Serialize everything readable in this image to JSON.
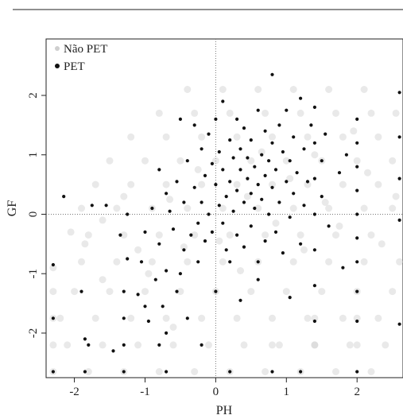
{
  "chart_data": {
    "type": "scatter",
    "xlabel": "PH",
    "ylabel": "GF",
    "xlim": [
      -2.4,
      2.65
    ],
    "ylim": [
      -2.75,
      2.95
    ],
    "x_ticks": [
      -2,
      -1,
      0,
      1,
      2
    ],
    "y_ticks": [
      -2,
      -1,
      0,
      1,
      2
    ],
    "x_tick_labels": [
      "-2",
      "-1",
      "0",
      "1",
      "2"
    ],
    "y_tick_labels": [
      "-2",
      "-1",
      "0",
      "1",
      "2"
    ],
    "reference_lines": {
      "x": 0,
      "y": 0,
      "style": "dotted"
    },
    "legend": {
      "position": "top-left"
    },
    "series": [
      {
        "name": "Não PET",
        "color": "#cfcfcf",
        "points": [
          [
            -2.3,
            -2.65
          ],
          [
            -1.8,
            -2.65
          ],
          [
            -1.3,
            -2.65
          ],
          [
            -0.8,
            -2.65
          ],
          [
            -0.3,
            -2.65
          ],
          [
            0.2,
            -2.65
          ],
          [
            0.7,
            -2.65
          ],
          [
            1.2,
            -2.65
          ],
          [
            1.7,
            -2.65
          ],
          [
            2.2,
            -2.65
          ],
          [
            -2.1,
            -2.2
          ],
          [
            -1.6,
            -2.2
          ],
          [
            -1.1,
            -2.2
          ],
          [
            -0.6,
            -2.2
          ],
          [
            -0.1,
            -2.2
          ],
          [
            0.4,
            -2.2
          ],
          [
            0.9,
            -2.2
          ],
          [
            1.4,
            -2.2
          ],
          [
            1.9,
            -2.2
          ],
          [
            2.4,
            -2.2
          ],
          [
            -2.2,
            -1.75
          ],
          [
            -1.7,
            -1.75
          ],
          [
            -1.2,
            -1.75
          ],
          [
            -0.7,
            -1.75
          ],
          [
            -0.2,
            -1.75
          ],
          [
            0.3,
            -1.75
          ],
          [
            0.8,
            -1.75
          ],
          [
            1.3,
            -1.75
          ],
          [
            1.8,
            -1.75
          ],
          [
            2.3,
            -1.75
          ],
          [
            -2.0,
            -1.3
          ],
          [
            -1.5,
            -1.3
          ],
          [
            -1.0,
            -1.3
          ],
          [
            -0.5,
            -1.3
          ],
          [
            0.0,
            -1.3
          ],
          [
            0.5,
            -1.3
          ],
          [
            1.0,
            -1.3
          ],
          [
            1.5,
            -1.3
          ],
          [
            2.0,
            -1.3
          ],
          [
            2.5,
            -1.3
          ],
          [
            -1.9,
            -0.8
          ],
          [
            -1.4,
            -0.8
          ],
          [
            -0.9,
            -0.8
          ],
          [
            -0.4,
            -0.8
          ],
          [
            0.1,
            -0.8
          ],
          [
            0.6,
            -0.8
          ],
          [
            1.1,
            -0.8
          ],
          [
            1.6,
            -0.8
          ],
          [
            2.1,
            -0.8
          ],
          [
            2.6,
            -0.8
          ],
          [
            -1.8,
            -0.35
          ],
          [
            -1.3,
            -0.35
          ],
          [
            -0.8,
            -0.35
          ],
          [
            -0.3,
            -0.35
          ],
          [
            0.2,
            -0.35
          ],
          [
            0.7,
            -0.35
          ],
          [
            1.2,
            -0.35
          ],
          [
            1.7,
            -0.35
          ],
          [
            2.2,
            -0.35
          ],
          [
            -1.9,
            0.1
          ],
          [
            -1.4,
            0.1
          ],
          [
            -0.9,
            0.1
          ],
          [
            -0.4,
            0.1
          ],
          [
            0.1,
            0.1
          ],
          [
            0.6,
            0.1
          ],
          [
            1.1,
            0.1
          ],
          [
            1.6,
            0.1
          ],
          [
            2.1,
            0.1
          ],
          [
            2.5,
            0.1
          ],
          [
            -1.7,
            0.5
          ],
          [
            -1.2,
            0.5
          ],
          [
            -0.7,
            0.5
          ],
          [
            -0.2,
            0.5
          ],
          [
            0.3,
            0.5
          ],
          [
            0.8,
            0.5
          ],
          [
            1.3,
            0.5
          ],
          [
            1.8,
            0.5
          ],
          [
            2.3,
            0.5
          ],
          [
            -1.5,
            0.9
          ],
          [
            -1.0,
            0.9
          ],
          [
            -0.5,
            0.9
          ],
          [
            0.0,
            0.9
          ],
          [
            0.5,
            0.9
          ],
          [
            1.0,
            0.9
          ],
          [
            1.5,
            0.9
          ],
          [
            2.0,
            0.9
          ],
          [
            2.5,
            0.9
          ],
          [
            -1.2,
            1.3
          ],
          [
            -0.7,
            1.3
          ],
          [
            -0.2,
            1.3
          ],
          [
            0.3,
            1.3
          ],
          [
            0.8,
            1.3
          ],
          [
            1.3,
            1.3
          ],
          [
            1.8,
            1.3
          ],
          [
            2.3,
            1.3
          ],
          [
            -0.8,
            1.7
          ],
          [
            -0.3,
            1.7
          ],
          [
            0.2,
            1.7
          ],
          [
            0.7,
            1.7
          ],
          [
            1.2,
            1.7
          ],
          [
            1.7,
            1.7
          ],
          [
            2.2,
            1.7
          ],
          [
            -0.4,
            2.1
          ],
          [
            0.1,
            2.1
          ],
          [
            0.6,
            2.1
          ],
          [
            1.1,
            2.1
          ],
          [
            1.6,
            2.1
          ],
          [
            2.1,
            2.1
          ],
          [
            -2.3,
            -0.9
          ],
          [
            -2.3,
            -1.3
          ],
          [
            -2.3,
            -1.75
          ],
          [
            -2.3,
            -2.2
          ],
          [
            -1.85,
            -0.5
          ],
          [
            -1.6,
            -0.1
          ],
          [
            -1.3,
            0.3
          ],
          [
            -1.1,
            -0.6
          ],
          [
            -0.95,
            -1.0
          ],
          [
            -0.65,
            0.25
          ],
          [
            -0.45,
            -0.55
          ],
          [
            -0.25,
            0.75
          ],
          [
            0.05,
            -0.45
          ],
          [
            0.35,
            -0.95
          ],
          [
            0.45,
            0.3
          ],
          [
            0.65,
            1.05
          ],
          [
            0.85,
            -0.15
          ],
          [
            1.05,
            0.6
          ],
          [
            1.25,
            -0.6
          ],
          [
            1.4,
            1.0
          ],
          [
            1.55,
            0.2
          ],
          [
            1.75,
            -0.2
          ],
          [
            1.95,
            1.4
          ],
          [
            2.15,
            0.7
          ],
          [
            2.35,
            -0.5
          ],
          [
            2.55,
            0.3
          ],
          [
            2.55,
            1.7
          ],
          [
            2.0,
            -2.2
          ],
          [
            2.0,
            -1.75
          ],
          [
            1.4,
            -1.75
          ],
          [
            1.4,
            -2.2
          ],
          [
            0.8,
            -2.2
          ],
          [
            -0.6,
            -1.9
          ],
          [
            -1.6,
            -1.1
          ],
          [
            -2.05,
            -0.3
          ]
        ]
      },
      {
        "name": "PET",
        "color": "#111111",
        "points": [
          [
            -2.3,
            -0.85
          ],
          [
            -2.3,
            -1.75
          ],
          [
            -2.3,
            -2.65
          ],
          [
            -2.15,
            0.3
          ],
          [
            -1.9,
            -1.3
          ],
          [
            -1.85,
            -2.1
          ],
          [
            -1.85,
            -2.65
          ],
          [
            -1.8,
            -2.2
          ],
          [
            -1.75,
            0.15
          ],
          [
            -1.55,
            0.15
          ],
          [
            -1.45,
            -2.3
          ],
          [
            -1.35,
            -0.35
          ],
          [
            -1.3,
            -1.75
          ],
          [
            -1.3,
            -1.3
          ],
          [
            -1.3,
            -2.2
          ],
          [
            -1.3,
            -2.65
          ],
          [
            -1.25,
            -0.75
          ],
          [
            -1.25,
            0.0
          ],
          [
            -1.1,
            -1.35
          ],
          [
            -1.05,
            -0.8
          ],
          [
            -1.0,
            -0.3
          ],
          [
            -0.95,
            -1.8
          ],
          [
            -0.9,
            0.1
          ],
          [
            -0.85,
            -1.1
          ],
          [
            -0.8,
            -0.5
          ],
          [
            -0.8,
            0.75
          ],
          [
            -0.8,
            -2.2
          ],
          [
            -0.75,
            -1.55
          ],
          [
            -0.7,
            0.35
          ],
          [
            -0.7,
            -0.95
          ],
          [
            -0.7,
            -2.0
          ],
          [
            -0.65,
            0.05
          ],
          [
            -0.6,
            -0.25
          ],
          [
            -0.55,
            0.55
          ],
          [
            -0.55,
            -1.3
          ],
          [
            -0.5,
            1.6
          ],
          [
            -0.45,
            -0.6
          ],
          [
            -0.45,
            0.2
          ],
          [
            -0.4,
            0.9
          ],
          [
            -0.4,
            -1.75
          ],
          [
            -0.35,
            -0.35
          ],
          [
            -0.3,
            1.5
          ],
          [
            -0.3,
            0.45
          ],
          [
            -0.25,
            -0.15
          ],
          [
            -0.25,
            -0.8
          ],
          [
            -0.2,
            1.1
          ],
          [
            -0.2,
            0.2
          ],
          [
            -0.15,
            0.65
          ],
          [
            -0.15,
            -0.45
          ],
          [
            -0.1,
            1.35
          ],
          [
            -0.1,
            0.0
          ],
          [
            -0.05,
            0.85
          ],
          [
            -0.05,
            -0.3
          ],
          [
            0.0,
            0.5
          ],
          [
            0.0,
            1.6
          ],
          [
            0.0,
            -1.3
          ],
          [
            0.05,
            1.05
          ],
          [
            0.05,
            0.15
          ],
          [
            0.1,
            -0.15
          ],
          [
            0.1,
            0.75
          ],
          [
            0.1,
            1.9
          ],
          [
            0.15,
            0.3
          ],
          [
            0.15,
            -0.6
          ],
          [
            0.2,
            1.25
          ],
          [
            0.2,
            0.55
          ],
          [
            0.2,
            -0.8
          ],
          [
            0.25,
            0.95
          ],
          [
            0.25,
            0.05
          ],
          [
            0.3,
            1.6
          ],
          [
            0.3,
            0.4
          ],
          [
            0.3,
            -0.35
          ],
          [
            0.35,
            0.75
          ],
          [
            0.35,
            1.1
          ],
          [
            0.4,
            0.2
          ],
          [
            0.4,
            -0.55
          ],
          [
            0.4,
            1.45
          ],
          [
            0.45,
            0.6
          ],
          [
            0.45,
            0.95
          ],
          [
            0.5,
            0.35
          ],
          [
            0.5,
            1.25
          ],
          [
            0.5,
            -0.2
          ],
          [
            0.55,
            0.8
          ],
          [
            0.55,
            0.1
          ],
          [
            0.6,
            1.75
          ],
          [
            0.6,
            0.5
          ],
          [
            0.6,
            -0.8
          ],
          [
            0.65,
            1.0
          ],
          [
            0.65,
            0.25
          ],
          [
            0.7,
            0.65
          ],
          [
            0.7,
            1.4
          ],
          [
            0.7,
            -0.45
          ],
          [
            0.75,
            0.9
          ],
          [
            0.75,
            0.0
          ],
          [
            0.8,
            1.2
          ],
          [
            0.8,
            0.45
          ],
          [
            0.8,
            2.35
          ],
          [
            0.85,
            -0.3
          ],
          [
            0.85,
            0.75
          ],
          [
            0.9,
            1.5
          ],
          [
            0.9,
            0.2
          ],
          [
            0.95,
            1.05
          ],
          [
            0.95,
            -0.65
          ],
          [
            1.0,
            0.55
          ],
          [
            1.0,
            1.75
          ],
          [
            1.05,
            0.9
          ],
          [
            1.05,
            -0.05
          ],
          [
            1.1,
            1.3
          ],
          [
            1.1,
            0.35
          ],
          [
            1.15,
            0.7
          ],
          [
            1.2,
            1.95
          ],
          [
            1.2,
            -0.5
          ],
          [
            1.25,
            1.1
          ],
          [
            1.25,
            0.15
          ],
          [
            1.3,
            0.55
          ],
          [
            1.35,
            1.5
          ],
          [
            1.4,
            1.8
          ],
          [
            1.4,
            1.2
          ],
          [
            1.4,
            0.6
          ],
          [
            1.4,
            0.0
          ],
          [
            1.4,
            -0.6
          ],
          [
            1.4,
            -1.2
          ],
          [
            1.4,
            -1.8
          ],
          [
            1.5,
            0.9
          ],
          [
            1.5,
            0.3
          ],
          [
            1.55,
            1.35
          ],
          [
            1.6,
            -0.2
          ],
          [
            1.75,
            0.7
          ],
          [
            1.8,
            -0.9
          ],
          [
            1.85,
            1.0
          ],
          [
            2.0,
            1.6
          ],
          [
            2.0,
            1.2
          ],
          [
            2.0,
            0.8
          ],
          [
            2.0,
            0.4
          ],
          [
            2.0,
            0.0
          ],
          [
            2.0,
            -0.4
          ],
          [
            2.0,
            -0.8
          ],
          [
            2.0,
            -1.3
          ],
          [
            2.0,
            -1.8
          ],
          [
            2.0,
            -2.65
          ],
          [
            2.6,
            2.05
          ],
          [
            2.6,
            1.3
          ],
          [
            2.6,
            0.6
          ],
          [
            2.6,
            -0.1
          ],
          [
            2.6,
            -1.85
          ],
          [
            -0.7,
            -2.65
          ],
          [
            0.2,
            -2.65
          ],
          [
            0.8,
            -2.65
          ],
          [
            1.2,
            -2.65
          ],
          [
            -0.2,
            -2.2
          ],
          [
            0.35,
            -1.45
          ],
          [
            -1.0,
            -1.55
          ],
          [
            -0.5,
            -1.0
          ],
          [
            0.6,
            -1.1
          ],
          [
            1.05,
            -1.4
          ]
        ]
      }
    ]
  }
}
